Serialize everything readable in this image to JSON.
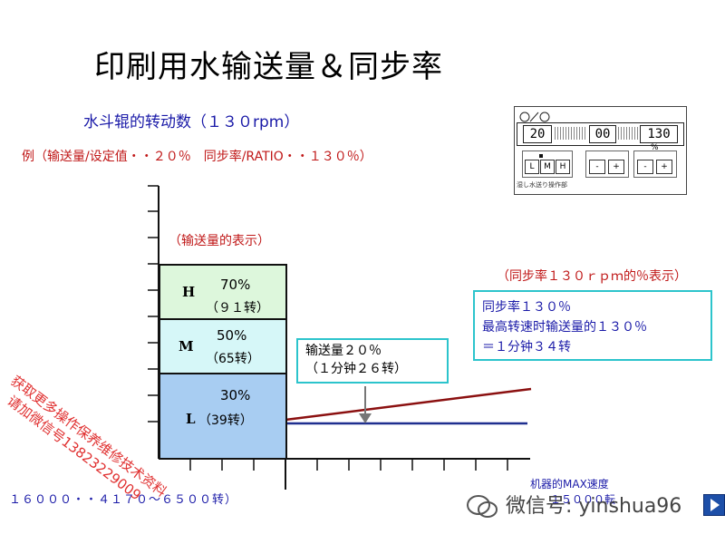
{
  "title": "印刷用水输送量＆同步率",
  "subtitle": "水斗辊的转动数（１３０rpm）",
  "example": "例（输送量/设定值・・２０％　同步率/RATIO・・１３０％）",
  "panel": {
    "value_left": "20",
    "value_mid": "00",
    "value_right": "130",
    "buttons": [
      "L",
      "M",
      "H"
    ],
    "minus_label": "-",
    "plus_label": "+",
    "unit_top": "%",
    "caption": "湿し水送り操作部"
  },
  "delivery_label": "（输送量的表示）",
  "sync_label": "（同步率１３０ｒｐｍ的％表示）",
  "bars": [
    {
      "letter": "H",
      "pct": "70%",
      "rev": "（９１转）"
    },
    {
      "letter": "M",
      "pct": "50%",
      "rev": "（65转）"
    },
    {
      "letter": "L",
      "pct": "30%",
      "rev": "（39转）"
    }
  ],
  "callout_delivery": {
    "line1": "输送量２０％",
    "line2": "（１分钟２６转）"
  },
  "callout_sync": {
    "line1": "同步率１３０％",
    "line2": "最高转速时输送量的１３０％",
    "line3": "＝１分钟３４转"
  },
  "axis_left": "１６０００・・４１７０～６５００转）",
  "axis_right": {
    "line1": "机器的MAX速度",
    "line2": "１５０００転"
  },
  "watermark": {
    "line1": "获取更多操作保养维修技术资料",
    "line2": "请加微信号13823229009"
  },
  "wechat": "微信号: yinshua96",
  "colors": {
    "bar_h": "#ddf7dc",
    "bar_m": "#d6f7f8",
    "bar_l": "#a8cdf2",
    "sync_line": "#8b1010",
    "base_line": "#1f2f8f",
    "callout_border": "#2cc4cc"
  }
}
